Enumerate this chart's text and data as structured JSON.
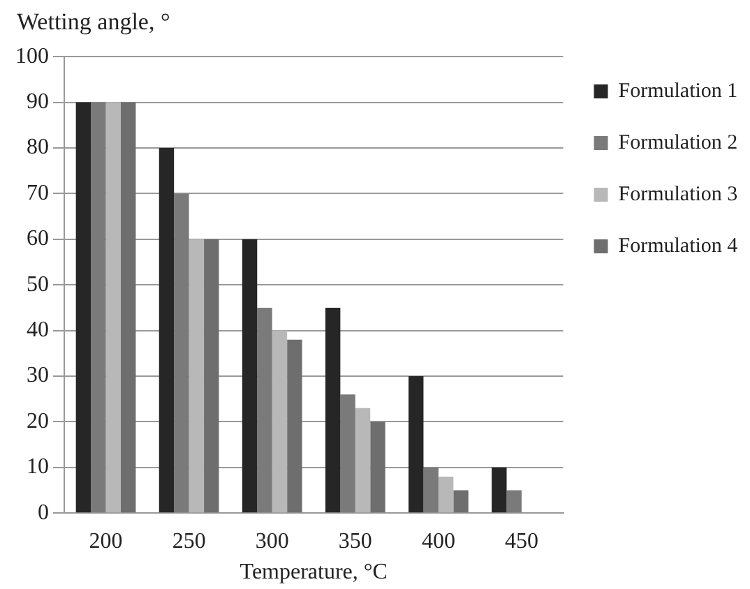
{
  "chart_data": {
    "type": "bar",
    "ylabel": "Wetting angle, °",
    "xlabel": "Temperature, °C",
    "categories": [
      "200",
      "250",
      "300",
      "350",
      "400",
      "450"
    ],
    "series": [
      {
        "name": "Formulation 1",
        "color": "#262626",
        "values": [
          90,
          80,
          60,
          45,
          30,
          10
        ]
      },
      {
        "name": "Formulation 2",
        "color": "#7a7a7a",
        "values": [
          90,
          70,
          45,
          26,
          10,
          5
        ]
      },
      {
        "name": "Formulation 3",
        "color": "#b8b8b8",
        "values": [
          90,
          60,
          40,
          23,
          8,
          null
        ]
      },
      {
        "name": "Formulation 4",
        "color": "#6e6e6e",
        "values": [
          90,
          60,
          38,
          20,
          5,
          null
        ]
      }
    ],
    "ylim": [
      0,
      100
    ],
    "yticks": [
      0,
      10,
      20,
      30,
      40,
      50,
      60,
      70,
      80,
      90,
      100
    ],
    "grid": "y",
    "legend": "right"
  }
}
